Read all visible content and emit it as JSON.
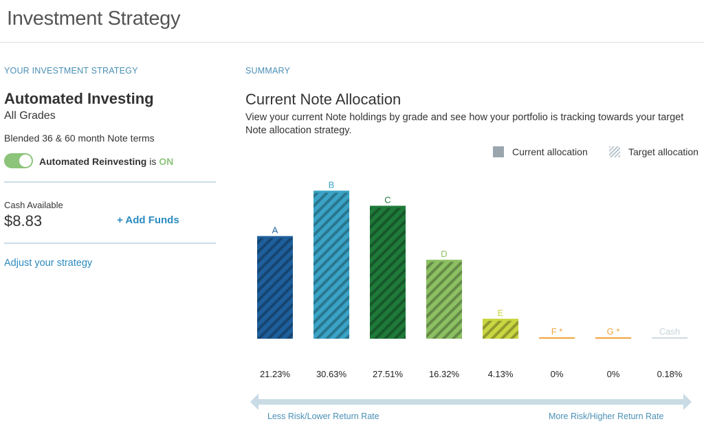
{
  "header": {
    "title": "Investment Strategy"
  },
  "left": {
    "section_label": "YOUR INVESTMENT STRATEGY",
    "strategy_name": "Automated Investing",
    "grades": "All Grades",
    "terms": "Blended 36 & 60 month Note terms",
    "reinvest": {
      "label": "Automated Reinvesting",
      "is_text": "is",
      "status": "ON",
      "toggle_on": true
    },
    "cash": {
      "label": "Cash Available",
      "value": "$8.83"
    },
    "add_funds": "+ Add Funds",
    "adjust": "Adjust your strategy"
  },
  "summary": {
    "section_label": "SUMMARY",
    "title": "Current Note Allocation",
    "description": "View your current Note holdings by grade and see how your portfolio is tracking towards your target Note allocation strategy.",
    "legend": {
      "current": "Current allocation",
      "target": "Target allocation"
    }
  },
  "chart_data": {
    "type": "bar",
    "categories": [
      "A",
      "B",
      "C",
      "D",
      "E",
      "F *",
      "G *",
      "Cash"
    ],
    "percent_labels": [
      "21.23%",
      "30.63%",
      "27.51%",
      "16.32%",
      "4.13%",
      "0%",
      "0%",
      "0.18%"
    ],
    "series": [
      {
        "name": "Current allocation",
        "values": [
          21.23,
          30.63,
          27.51,
          16.32,
          4.13,
          0,
          0,
          0.18
        ]
      }
    ],
    "colors": [
      "#1e5f9c",
      "#3aa3c6",
      "#1f7a3a",
      "#8cc063",
      "#c9d640",
      "#f0a43a",
      "#f0a43a",
      "#cfdbe2"
    ],
    "label_colors": [
      "#1e5f9c",
      "#3aa3c6",
      "#1f7a3a",
      "#8cc063",
      "#c9d640",
      "#f0a43a",
      "#f0a43a",
      "#c7d1d8"
    ],
    "ylim": [
      0,
      31
    ],
    "grid": false,
    "legend_position": "top-right"
  },
  "risk": {
    "left": "Less Risk/Lower Return Rate",
    "right": "More Risk/Higher Return Rate"
  }
}
